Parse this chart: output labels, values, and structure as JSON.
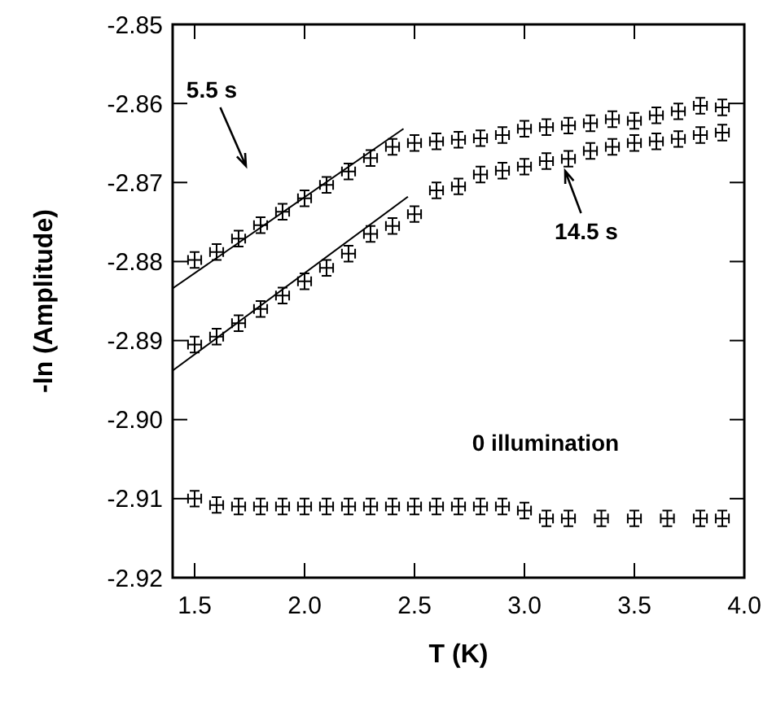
{
  "chart_data": {
    "type": "scatter",
    "xlabel": "T (K)",
    "ylabel": "-ln (Amplitude)",
    "xlim": [
      1.4,
      4.0
    ],
    "ylim": [
      -2.92,
      -2.85
    ],
    "xticks": [
      1.5,
      {
        "value": 2,
        "label": "2.0"
      },
      2.5,
      {
        "value": 3,
        "label": "3.0"
      },
      3.5,
      {
        "value": 4,
        "label": "4.0"
      }
    ],
    "yticks": [
      -2.92,
      -2.91,
      {
        "value": -2.9,
        "label": "-2.90"
      },
      -2.89,
      -2.88,
      -2.87,
      -2.86,
      -2.85
    ],
    "x": [
      1.5,
      1.6,
      1.7,
      1.8,
      1.9,
      2.0,
      2.1,
      2.2,
      2.3,
      2.4,
      2.5,
      2.6,
      2.7,
      2.8,
      2.9,
      3.0,
      3.1,
      3.2,
      3.3,
      3.4,
      3.5,
      3.6,
      3.7,
      3.8,
      3.9
    ],
    "series": [
      {
        "color": "#000000",
        "values": [
          -2.8798,
          -2.8788,
          -2.8771,
          -2.8754,
          -2.8737,
          -2.872,
          -2.8703,
          -2.8686,
          -2.8669,
          -2.8655,
          -2.865,
          -2.8648,
          -2.8646,
          -2.8644,
          -2.864,
          -2.8632,
          -2.863,
          -2.8628,
          -2.8625,
          -2.862,
          -2.8622,
          -2.8615,
          -2.861,
          -2.8603,
          -2.8605
        ],
        "errors": [
          0.001,
          0.001,
          0.001,
          0.001,
          0.001,
          0.001,
          0.001,
          0.001,
          0.001,
          0.001,
          0.001,
          0.001,
          0.001,
          0.001,
          0.001,
          0.001,
          0.001,
          0.001,
          0.001,
          0.001,
          0.001,
          0.001,
          0.001,
          0.001,
          0.001
        ],
        "xerrors": [
          0.03,
          0.03,
          0.03,
          0.03,
          0.03,
          0.03,
          0.03,
          0.03,
          0.03,
          0.03,
          0.03,
          0.03,
          0.03,
          0.03,
          0.03,
          0.03,
          0.03,
          0.03,
          0.03,
          0.03,
          0.03,
          0.03,
          0.03,
          0.03,
          0.03
        ]
      },
      {
        "color": "#000000",
        "values": [
          -2.8905,
          -2.8895,
          -2.8878,
          -2.886,
          -2.8843,
          -2.8825,
          -2.8808,
          -2.879,
          -2.8765,
          -2.8755,
          -2.874,
          -2.871,
          -2.8705,
          -2.869,
          -2.8685,
          -2.868,
          -2.8673,
          -2.867,
          -2.866,
          -2.8655,
          -2.865,
          -2.8648,
          -2.8645,
          -2.864,
          -2.8637
        ],
        "errors": [
          0.001,
          0.001,
          0.001,
          0.001,
          0.001,
          0.001,
          0.001,
          0.001,
          0.001,
          0.001,
          0.001,
          0.001,
          0.001,
          0.001,
          0.001,
          0.001,
          0.001,
          0.001,
          0.001,
          0.001,
          0.001,
          0.001,
          0.001,
          0.001,
          0.001
        ],
        "xerrors": [
          0.03,
          0.03,
          0.03,
          0.03,
          0.03,
          0.03,
          0.03,
          0.03,
          0.03,
          0.03,
          0.03,
          0.03,
          0.03,
          0.03,
          0.03,
          0.03,
          0.03,
          0.03,
          0.03,
          0.03,
          0.03,
          0.03,
          0.03,
          0.03,
          0.03
        ]
      },
      {
        "color": "#000000",
        "x": [
          1.5,
          1.6,
          1.7,
          1.8,
          1.9,
          2.0,
          2.1,
          2.2,
          2.3,
          2.4,
          2.5,
          2.6,
          2.7,
          2.8,
          2.9,
          3.0,
          3.1,
          3.2,
          3.35,
          3.5,
          3.65,
          3.8,
          3.9
        ],
        "values": [
          -2.91,
          -2.9108,
          -2.911,
          -2.911,
          -2.911,
          -2.911,
          -2.911,
          -2.911,
          -2.911,
          -2.911,
          -2.911,
          -2.911,
          -2.911,
          -2.911,
          -2.911,
          -2.9115,
          -2.9125,
          -2.9125,
          -2.9125,
          -2.9125,
          -2.9125,
          -2.9125,
          -2.9125
        ],
        "errors": [
          0.001,
          0.001,
          0.001,
          0.001,
          0.001,
          0.001,
          0.001,
          0.001,
          0.001,
          0.001,
          0.001,
          0.001,
          0.001,
          0.001,
          0.001,
          0.001,
          0.001,
          0.001,
          0.001,
          0.001,
          0.001,
          0.001,
          0.001
        ],
        "xerrors": [
          0.03,
          0.03,
          0.03,
          0.03,
          0.03,
          0.03,
          0.03,
          0.03,
          0.03,
          0.03,
          0.03,
          0.03,
          0.03,
          0.03,
          0.03,
          0.03,
          0.03,
          0.03,
          0.03,
          0.03,
          0.03,
          0.03,
          0.03
        ]
      },
      {
        "type": "line",
        "color": "#000000",
        "x": [
          1.4,
          2.45
        ],
        "values": [
          -2.8834,
          -2.8632
        ]
      },
      {
        "type": "line",
        "color": "#000000",
        "x": [
          1.4,
          2.47
        ],
        "values": [
          -2.8938,
          -2.8718
        ]
      }
    ],
    "annotations": [
      "5.5 s",
      "14.5 s",
      "0 illumination"
    ]
  }
}
